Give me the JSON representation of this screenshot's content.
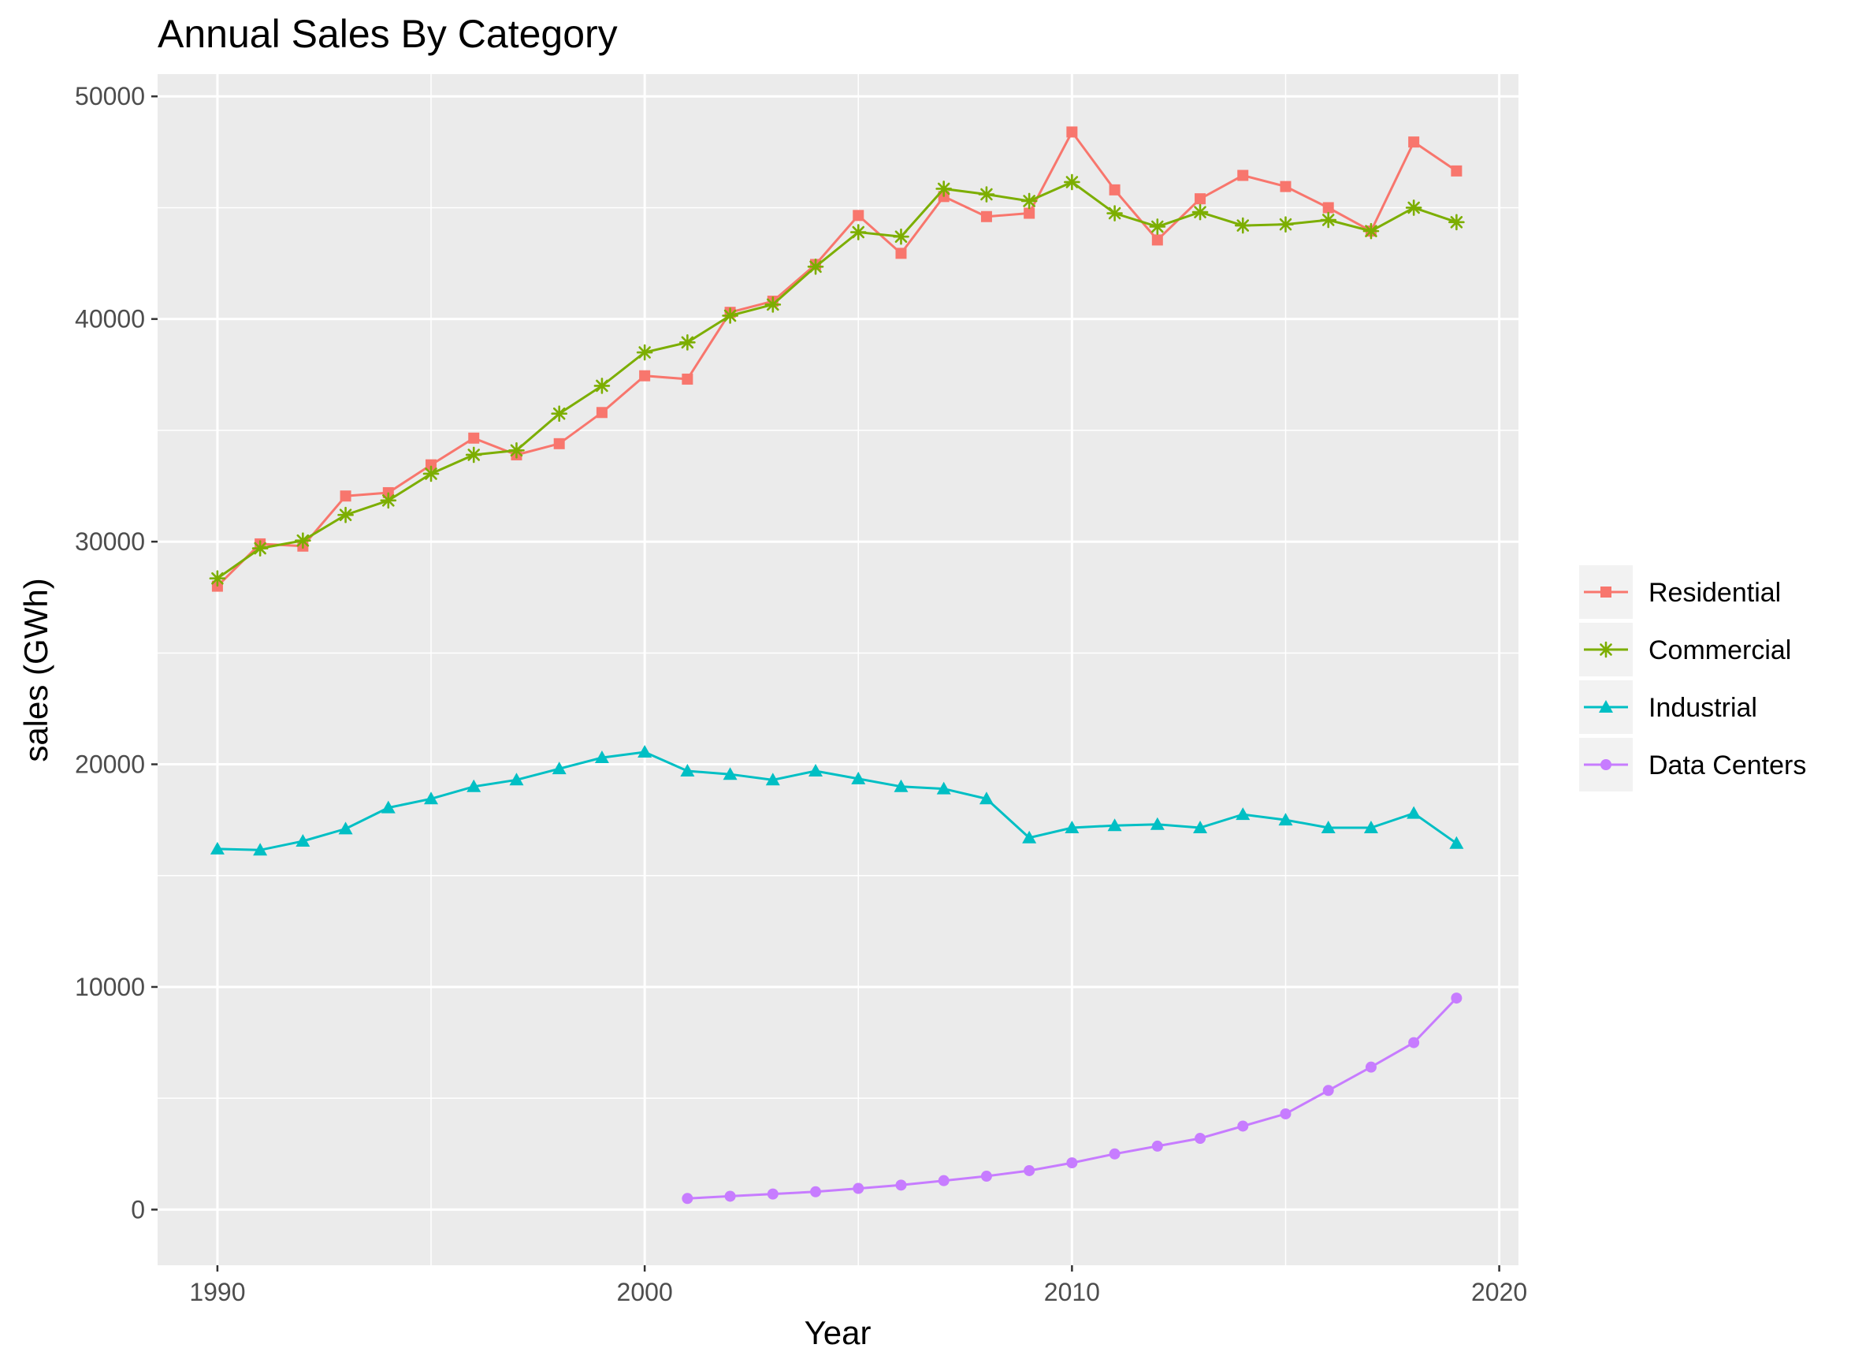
{
  "chart_data": {
    "type": "line",
    "title": "Annual Sales By Category",
    "xlabel": "Year",
    "ylabel": "sales (GWh)",
    "xlim": [
      1988.6,
      2020.45
    ],
    "ylim": [
      -2500,
      51000
    ],
    "x_ticks": [
      1990,
      2000,
      2010,
      2020
    ],
    "y_ticks": [
      0,
      10000,
      20000,
      30000,
      40000,
      50000
    ],
    "grid": true,
    "legend_position": "right",
    "series": [
      {
        "name": "Residential",
        "color": "#F8766D",
        "marker": "square",
        "x": [
          1990,
          1991,
          1992,
          1993,
          1994,
          1995,
          1996,
          1997,
          1998,
          1999,
          2000,
          2001,
          2002,
          2003,
          2004,
          2005,
          2006,
          2007,
          2008,
          2009,
          2010,
          2011,
          2012,
          2013,
          2014,
          2015,
          2016,
          2017,
          2018,
          2019
        ],
        "values": [
          28000,
          29900,
          29800,
          32050,
          32200,
          33450,
          34650,
          33900,
          34400,
          35800,
          37450,
          37300,
          40300,
          40800,
          42450,
          44650,
          42950,
          45500,
          44600,
          44750,
          48400,
          45800,
          43550,
          45400,
          46450,
          45950,
          45000,
          43950,
          47950,
          46650
        ]
      },
      {
        "name": "Commercial",
        "color": "#7CAE00",
        "marker": "asterisk",
        "x": [
          1990,
          1991,
          1992,
          1993,
          1994,
          1995,
          1996,
          1997,
          1998,
          1999,
          2000,
          2001,
          2002,
          2003,
          2004,
          2005,
          2006,
          2007,
          2008,
          2009,
          2010,
          2011,
          2012,
          2013,
          2014,
          2015,
          2016,
          2017,
          2018,
          2019
        ],
        "values": [
          28350,
          29700,
          30050,
          31200,
          31850,
          33050,
          33900,
          34100,
          35750,
          37000,
          38500,
          38950,
          40150,
          40650,
          42350,
          43900,
          43700,
          45850,
          45600,
          45300,
          46150,
          44750,
          44150,
          44800,
          44200,
          44250,
          44450,
          43950,
          45000,
          44350
        ]
      },
      {
        "name": "Industrial",
        "color": "#00BFC4",
        "marker": "triangle",
        "x": [
          1990,
          1991,
          1992,
          1993,
          1994,
          1995,
          1996,
          1997,
          1998,
          1999,
          2000,
          2001,
          2002,
          2003,
          2004,
          2005,
          2006,
          2007,
          2008,
          2009,
          2010,
          2011,
          2012,
          2013,
          2014,
          2015,
          2016,
          2017,
          2018,
          2019
        ],
        "values": [
          16200,
          16150,
          16550,
          17100,
          18050,
          18450,
          19000,
          19300,
          19800,
          20300,
          20550,
          19700,
          19550,
          19300,
          19700,
          19350,
          19000,
          18900,
          18450,
          16700,
          17150,
          17250,
          17300,
          17150,
          17750,
          17500,
          17150,
          17150,
          17800,
          16450
        ]
      },
      {
        "name": "Data Centers",
        "color": "#C77CFF",
        "marker": "circle",
        "x": [
          2001,
          2002,
          2003,
          2004,
          2005,
          2006,
          2007,
          2008,
          2009,
          2010,
          2011,
          2012,
          2013,
          2014,
          2015,
          2016,
          2017,
          2018,
          2019
        ],
        "values": [
          500,
          600,
          700,
          800,
          950,
          1100,
          1300,
          1500,
          1750,
          2100,
          2500,
          2850,
          3200,
          3750,
          4300,
          5350,
          6400,
          7500,
          9500
        ]
      }
    ]
  }
}
